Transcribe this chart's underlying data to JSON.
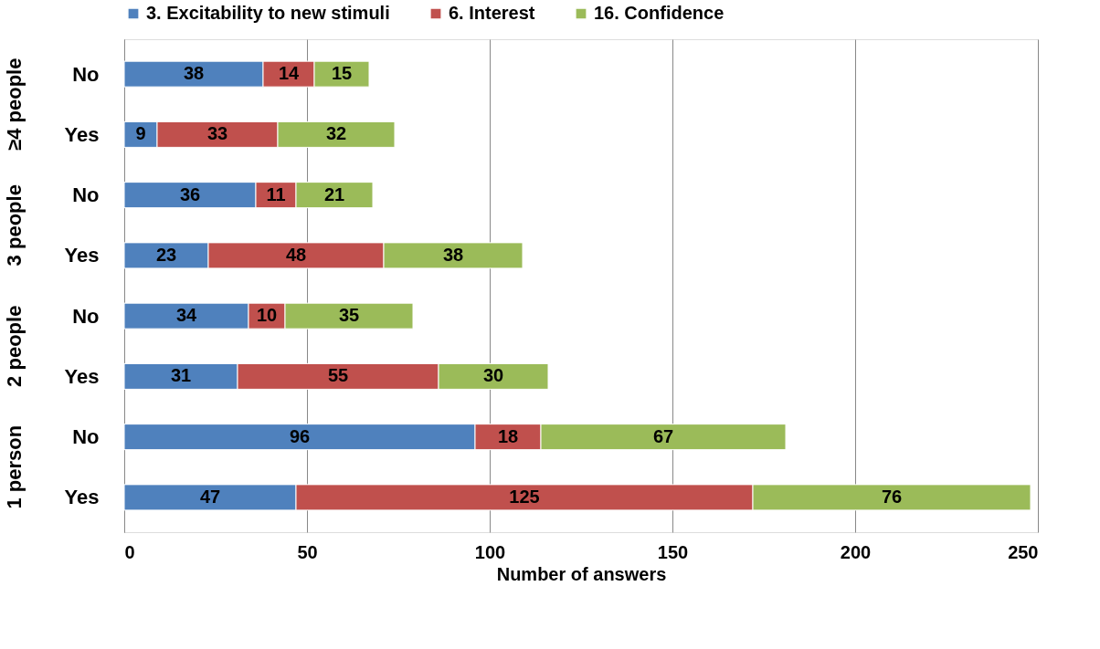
{
  "chart_data": {
    "type": "bar",
    "orientation": "horizontal",
    "stacked": true,
    "xlabel": "Number of answers",
    "categories": [
      "No",
      "Yes",
      "No",
      "Yes",
      "No",
      "Yes",
      "No",
      "Yes"
    ],
    "annotations": [
      "≥4 people",
      "3 people",
      "2 people",
      "1 person"
    ],
    "series": [
      {
        "name": "3. Excitability to new stimuli",
        "color": "#4f81bd",
        "values": [
          38,
          9,
          36,
          23,
          34,
          31,
          96,
          47
        ]
      },
      {
        "name": "6. Interest",
        "color": "#c0504d",
        "values": [
          14,
          33,
          11,
          48,
          10,
          55,
          18,
          125
        ]
      },
      {
        "name": "16. Confidence",
        "color": "#9bbb59",
        "values": [
          15,
          32,
          21,
          38,
          35,
          30,
          67,
          76
        ]
      }
    ],
    "xlim": [
      0,
      250
    ],
    "xticks": [
      0,
      50,
      100,
      150,
      200,
      250
    ],
    "grid": "x",
    "legend": "top",
    "data_labels": true
  }
}
